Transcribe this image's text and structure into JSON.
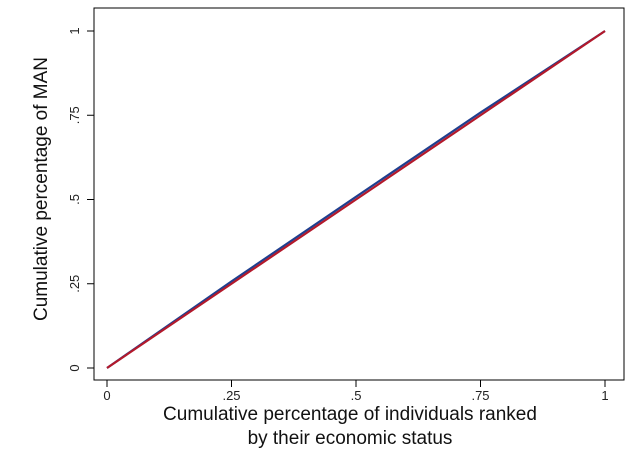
{
  "chart_data": {
    "type": "line",
    "title": "",
    "xlabel_lines": [
      "Cumulative percentage of individuals ranked",
      "by their economic status"
    ],
    "ylabel": "Cumulative percentage of MAN",
    "xlim": [
      0,
      1
    ],
    "ylim": [
      0,
      1
    ],
    "x_ticks": [
      0,
      0.25,
      0.5,
      0.75,
      1
    ],
    "x_tick_labels": [
      "0",
      ".25",
      ".5",
      ".75",
      "1"
    ],
    "y_ticks": [
      0,
      0.25,
      0.5,
      0.75,
      1
    ],
    "y_tick_labels": [
      "0",
      ".25",
      ".5",
      ".75",
      "1"
    ],
    "grid": false,
    "legend": "none",
    "series": [
      {
        "color": "#1f3f8f",
        "x": [
          0,
          0.25,
          0.5,
          0.75,
          1
        ],
        "y": [
          0,
          0.257,
          0.508,
          0.758,
          1
        ]
      },
      {
        "color": "#b3192b",
        "x": [
          0,
          0.25,
          0.5,
          0.75,
          1
        ],
        "y": [
          0,
          0.25,
          0.5,
          0.75,
          1
        ]
      }
    ]
  }
}
